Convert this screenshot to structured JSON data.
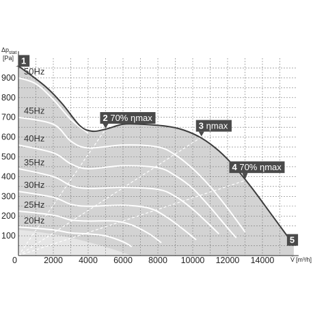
{
  "chart_data": {
    "type": "line",
    "x_unit_prefix": "V̇",
    "x_unit": "[m³/h]",
    "y_unit_symbol": "Δp",
    "y_unit_sub": "stat",
    "y_unit": "[Pa]",
    "xlim": [
      0,
      16000
    ],
    "ylim": [
      0,
      1000
    ],
    "x_ticks": [
      0,
      2000,
      4000,
      6000,
      8000,
      10000,
      12000,
      14000
    ],
    "y_ticks": [
      100,
      200,
      300,
      400,
      500,
      600,
      700,
      800,
      900
    ],
    "grid": true,
    "envelope": [
      [
        0,
        960
      ],
      [
        1500,
        860
      ],
      [
        2500,
        770
      ],
      [
        3500,
        660
      ],
      [
        4200,
        630
      ],
      [
        5000,
        640
      ],
      [
        6000,
        665
      ],
      [
        7000,
        665
      ],
      [
        8500,
        655
      ],
      [
        9500,
        635
      ],
      [
        10500,
        595
      ],
      [
        11500,
        530
      ],
      [
        12500,
        440
      ],
      [
        13500,
        330
      ],
      [
        14500,
        210
      ],
      [
        15500,
        90
      ],
      [
        15800,
        50
      ]
    ],
    "speed_curves": [
      {
        "name": "50Hz",
        "points": [
          [
            0,
            900
          ],
          [
            1000,
            870
          ],
          [
            2000,
            790
          ],
          [
            3000,
            690
          ],
          [
            4000,
            620
          ]
        ]
      },
      {
        "name": "45Hz",
        "points": [
          [
            0,
            700
          ],
          [
            2000,
            665
          ],
          [
            3000,
            580
          ],
          [
            4000,
            545
          ],
          [
            6000,
            560
          ],
          [
            8000,
            550
          ],
          [
            9000,
            510
          ],
          [
            10000,
            440
          ],
          [
            11000,
            350
          ],
          [
            12000,
            240
          ],
          [
            13000,
            120
          ]
        ]
      },
      {
        "name": "40Hz",
        "points": [
          [
            0,
            560
          ],
          [
            2000,
            520
          ],
          [
            3000,
            465
          ],
          [
            4000,
            440
          ],
          [
            6000,
            455
          ],
          [
            8000,
            445
          ],
          [
            9000,
            405
          ],
          [
            10000,
            340
          ],
          [
            11000,
            245
          ],
          [
            12000,
            140
          ],
          [
            12500,
            90
          ]
        ]
      },
      {
        "name": "35Hz",
        "points": [
          [
            0,
            440
          ],
          [
            2000,
            400
          ],
          [
            3000,
            355
          ],
          [
            4000,
            340
          ],
          [
            6000,
            345
          ],
          [
            8000,
            335
          ],
          [
            9000,
            300
          ],
          [
            10000,
            235
          ],
          [
            10800,
            170
          ],
          [
            11500,
            110
          ]
        ]
      },
      {
        "name": "30Hz",
        "points": [
          [
            0,
            325
          ],
          [
            2000,
            295
          ],
          [
            3000,
            260
          ],
          [
            4000,
            250
          ],
          [
            6000,
            255
          ],
          [
            7500,
            240
          ],
          [
            8500,
            195
          ],
          [
            9500,
            130
          ],
          [
            10200,
            80
          ]
        ]
      },
      {
        "name": "25Hz",
        "points": [
          [
            0,
            225
          ],
          [
            2000,
            205
          ],
          [
            3000,
            180
          ],
          [
            4000,
            175
          ],
          [
            5500,
            175
          ],
          [
            6500,
            155
          ],
          [
            7500,
            110
          ],
          [
            8200,
            65
          ]
        ]
      },
      {
        "name": "20Hz",
        "points": [
          [
            0,
            145
          ],
          [
            2000,
            130
          ],
          [
            3000,
            115
          ],
          [
            4000,
            110
          ],
          [
            5000,
            100
          ],
          [
            6000,
            70
          ],
          [
            6500,
            45
          ]
        ]
      }
    ],
    "efficiency_lines": [
      {
        "name": "70% ηmax",
        "points": [
          [
            0,
            0
          ],
          [
            5000,
            640
          ]
        ]
      },
      {
        "name": "ηmax",
        "points": [
          [
            0,
            0
          ],
          [
            10500,
            600
          ]
        ]
      },
      {
        "name": "70% ηmax",
        "points": [
          [
            0,
            0
          ],
          [
            13000,
            380
          ]
        ]
      }
    ],
    "operating_points": [
      {
        "num": "1",
        "label": "",
        "x": 0,
        "y": 960
      },
      {
        "num": "2",
        "label": "70% ηmax",
        "x": 5000,
        "y": 640
      },
      {
        "num": "3",
        "label": "ηmax",
        "x": 10500,
        "y": 600
      },
      {
        "num": "4",
        "label": "70% ηmax",
        "x": 13000,
        "y": 380
      },
      {
        "num": "5",
        "label": "",
        "x": 15800,
        "y": 50
      }
    ],
    "colors": {
      "area": "#d3d3d3",
      "envelope": "#3c3c3c",
      "speed_curve": "#ffffff",
      "label_box": "#4a4a4a",
      "grid": "#777777"
    }
  }
}
